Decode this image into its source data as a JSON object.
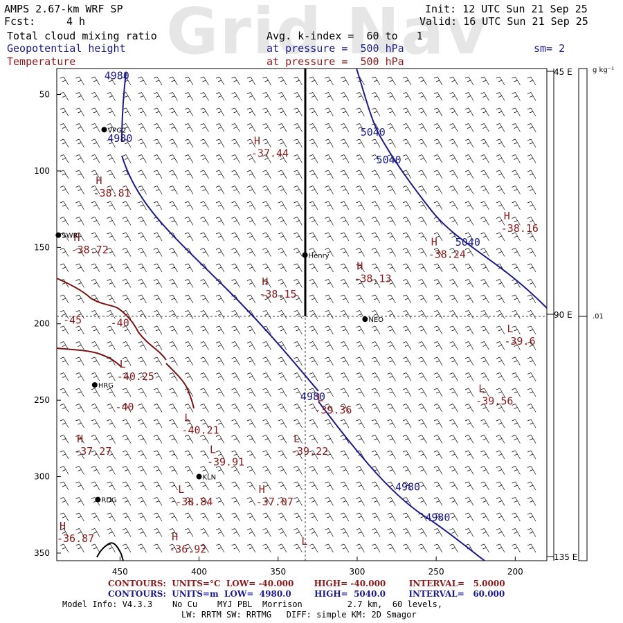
{
  "watermark": "Grid Nav",
  "header": {
    "model": "AMPS 2.67-km WRF SP",
    "fcst_label": "Fcst:",
    "fcst_value": "4 h",
    "init": "Init: 12 UTC Sun 21 Sep 25",
    "valid": "Valid: 16 UTC Sun 21 Sep 25",
    "field1": "Total cloud mixing ratio",
    "field1_spec": "Avg. k-index =  60 to   1",
    "field2": "Geopotential height",
    "field2_spec": "at pressure =  500 hPa",
    "field3": "Temperature",
    "field3_spec": "at pressure =  500 hPa",
    "sm": "sm= 2"
  },
  "colors": {
    "height": "#1a1a8c",
    "temperature": "#8b1a1a",
    "axis": "#000000"
  },
  "chart_data": {
    "type": "cross-section map",
    "x_ticks": [
      "450",
      "400",
      "350",
      "300",
      "250",
      "200"
    ],
    "y_ticks": [
      "50",
      "100",
      "150",
      "200",
      "250",
      "300",
      "350"
    ],
    "right_axis_labels": [
      "45 E",
      "90 E",
      "135 E"
    ],
    "colorbar_unit": "g kg⁻¹",
    "colorbar_value": ".01",
    "xlim": [
      490,
      180
    ],
    "ylim": [
      355,
      33
    ],
    "stations": [
      {
        "name": "VPG2",
        "x": 460,
        "y": 73
      },
      {
        "name": "SWR",
        "x": 489,
        "y": 142
      },
      {
        "name": "Henry",
        "x": 333,
        "y": 155
      },
      {
        "name": "NEO",
        "x": 295,
        "y": 197
      },
      {
        "name": "HRG",
        "x": 466,
        "y": 240
      },
      {
        "name": "KLN",
        "x": 400,
        "y": 300
      },
      {
        "name": "RDG",
        "x": 464,
        "y": 315
      }
    ],
    "height_contour_labels": [
      {
        "text": "4980",
        "x": 452,
        "y": 40
      },
      {
        "text": "4980",
        "x": 450,
        "y": 81
      },
      {
        "text": "5040",
        "x": 290,
        "y": 77
      },
      {
        "text": "5040",
        "x": 280,
        "y": 95
      },
      {
        "text": "5040",
        "x": 230,
        "y": 149
      },
      {
        "text": "4980",
        "x": 328,
        "y": 250
      },
      {
        "text": "4980",
        "x": 268,
        "y": 309
      },
      {
        "text": "4980",
        "x": 249,
        "y": 329
      }
    ],
    "temperature_labels": [
      {
        "kind": "H",
        "text": "-37.44",
        "x": 367,
        "y": 89
      },
      {
        "kind": "H",
        "text": "-38.81",
        "x": 467,
        "y": 115
      },
      {
        "kind": "H",
        "text": "-38.16",
        "x": 209,
        "y": 138
      },
      {
        "kind": "H",
        "text": "-38.72",
        "x": 481,
        "y": 152
      },
      {
        "kind": "H",
        "text": "-38.24",
        "x": 255,
        "y": 155
      },
      {
        "kind": "H",
        "text": "-38.13",
        "x": 302,
        "y": 171
      },
      {
        "kind": "H",
        "text": "-38.15",
        "x": 362,
        "y": 181
      },
      {
        "kind": "",
        "text": "-45",
        "x": 486,
        "y": 198
      },
      {
        "kind": "",
        "text": "-40",
        "x": 456,
        "y": 200
      },
      {
        "kind": "L",
        "text": "-39.6",
        "x": 207,
        "y": 212
      },
      {
        "kind": "L",
        "text": "-40.25",
        "x": 452,
        "y": 235
      },
      {
        "kind": "L",
        "text": "-39.56",
        "x": 225,
        "y": 251
      },
      {
        "kind": "",
        "text": "-40",
        "x": 453,
        "y": 255
      },
      {
        "kind": "L",
        "text": "-39.36",
        "x": 327,
        "y": 257
      },
      {
        "kind": "L",
        "text": "-40.21",
        "x": 411,
        "y": 270
      },
      {
        "kind": "H",
        "text": "-37.27",
        "x": 479,
        "y": 284
      },
      {
        "kind": "L",
        "text": "-39.22",
        "x": 342,
        "y": 284
      },
      {
        "kind": "L",
        "text": "-39.91",
        "x": 395,
        "y": 291
      },
      {
        "kind": "L",
        "text": "-38.84",
        "x": 415,
        "y": 317
      },
      {
        "kind": "H",
        "text": "-37.07",
        "x": 364,
        "y": 317
      },
      {
        "kind": "H",
        "text": "-36.87",
        "x": 490,
        "y": 341
      },
      {
        "kind": "H",
        "text": "-36.92",
        "x": 419,
        "y": 348
      },
      {
        "kind": "L",
        "text": "",
        "x": 337,
        "y": 351
      }
    ]
  },
  "footer": {
    "temp_contours": "CONTOURS:  UNITS=°C  LOW= -40.000       HIGH= -40.000        INTERVAL=   5.0000",
    "height_contours": "CONTOURS:  UNITS=m  LOW=  4980.0        HIGH=  5040.0        INTERVAL=   60.000",
    "model_info": "Model Info: V4.3.3    No Cu    MYJ PBL  Morrison         2.7 km,  60 levels,",
    "model_info2": "LW: RRTM SW: RRTMG   DIFF: simple KM: 2D Smagor"
  }
}
